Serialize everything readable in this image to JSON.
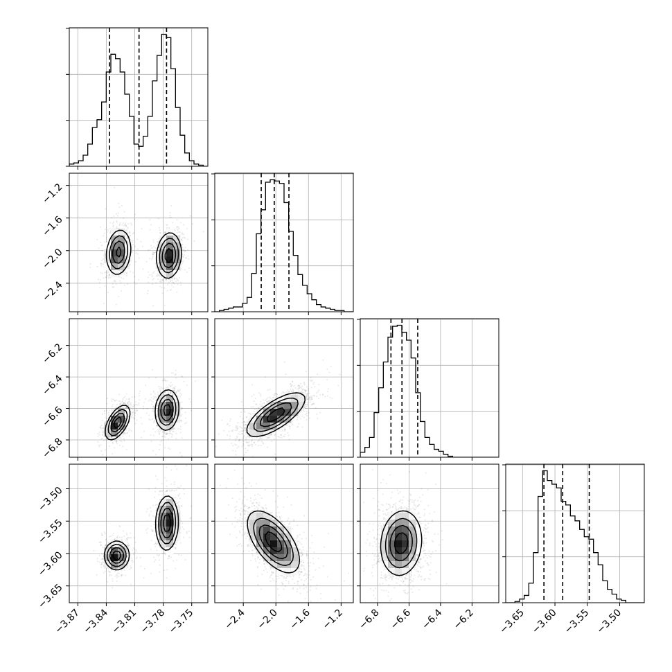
{
  "chart_data": {
    "type": "corner",
    "parameters": 4,
    "grid": true,
    "axis_labels": [
      "",
      "",
      "",
      ""
    ],
    "ranges": [
      [
        -3.879,
        -3.733
      ],
      [
        -2.75,
        -1.05
      ],
      [
        -6.91,
        -6.03
      ],
      [
        -3.676,
        -3.462
      ]
    ],
    "tick_values": [
      [
        -3.87,
        -3.84,
        -3.81,
        -3.78,
        -3.75
      ],
      [
        -2.4,
        -2.0,
        -1.6,
        -1.2
      ],
      [
        -6.8,
        -6.6,
        -6.4,
        -6.2
      ],
      [
        -3.65,
        -3.6,
        -3.55,
        -3.5
      ]
    ],
    "tick_labels": [
      [
        "−3.87",
        "−3.84",
        "−3.81",
        "−3.78",
        "−3.75"
      ],
      [
        "−2.4",
        "−2.0",
        "−1.6",
        "−1.2"
      ],
      [
        "−6.8",
        "−6.6",
        "−6.4",
        "−6.2"
      ],
      [
        "−3.65",
        "−3.60",
        "−3.55",
        "−3.50"
      ]
    ],
    "quantiles": [
      [
        -3.8365,
        -3.8055,
        -3.7765
      ],
      [
        -2.18,
        -2.02,
        -1.84
      ],
      [
        -6.715,
        -6.645,
        -6.545
      ],
      [
        -3.617,
        -3.588,
        -3.547
      ]
    ],
    "histograms": [
      {
        "bins": [
          -3.879,
          -3.733
        ],
        "counts": [
          2,
          3,
          5,
          10,
          20,
          35,
          42,
          58,
          85,
          101,
          97,
          85,
          65,
          45,
          20,
          18,
          27,
          45,
          77,
          100,
          119,
          116,
          88,
          53,
          28,
          12,
          5,
          2,
          1,
          0
        ]
      },
      {
        "bins": [
          -2.75,
          -1.05
        ],
        "counts": [
          0,
          1,
          2,
          3,
          4,
          4,
          7,
          12,
          32,
          65,
          85,
          108,
          110,
          109,
          107,
          91,
          67,
          47,
          31,
          22,
          15,
          10,
          6,
          4,
          3,
          2,
          1,
          1,
          0,
          0
        ]
      },
      {
        "bins": [
          -6.91,
          -6.03
        ],
        "counts": [
          5,
          10,
          20,
          45,
          70,
          96,
          121,
          132,
          133,
          126,
          118,
          100,
          65,
          36,
          20,
          13,
          8,
          6,
          3,
          1,
          0,
          0,
          0,
          0,
          0,
          0,
          0,
          0,
          0,
          0
        ]
      },
      {
        "bins": [
          -3.676,
          -3.462
        ],
        "counts": [
          0,
          0,
          1,
          3,
          6,
          16,
          41,
          87,
          108,
          100,
          97,
          94,
          83,
          80,
          71,
          67,
          60,
          54,
          52,
          41,
          31,
          18,
          11,
          7,
          3,
          2,
          0,
          0,
          0,
          0
        ]
      }
    ],
    "modes_2d": [
      {
        "pair": [
          0,
          1
        ],
        "modes": [
          {
            "center": [
              -3.827,
              -2.02
            ],
            "sigma": [
              0.0065,
              0.14
            ],
            "rho": 0.15,
            "weight": 1.0
          },
          {
            "center": [
              -3.774,
              -2.06
            ],
            "sigma": [
              0.0065,
              0.14
            ],
            "rho": 0.1,
            "weight": 1.1
          }
        ]
      },
      {
        "pair": [
          0,
          2
        ],
        "modes": [
          {
            "center": [
              -3.828,
              -6.69
            ],
            "sigma": [
              0.0065,
              0.055
            ],
            "rho": 0.55,
            "weight": 1.05
          },
          {
            "center": [
              -3.776,
              -6.61
            ],
            "sigma": [
              0.0062,
              0.065
            ],
            "rho": 0.1,
            "weight": 1.0
          }
        ]
      },
      {
        "pair": [
          0,
          3
        ],
        "modes": [
          {
            "center": [
              -3.829,
              -3.603
            ],
            "sigma": [
              0.0065,
              0.011
            ],
            "rho": 0.0,
            "weight": 1.0
          },
          {
            "center": [
              -3.776,
              -3.553
            ],
            "sigma": [
              0.0058,
              0.021
            ],
            "rho": 0.05,
            "weight": 1.0
          }
        ]
      },
      {
        "pair": [
          1,
          2
        ],
        "modes": [
          {
            "center": [
              -2.0,
              -6.64
            ],
            "sigma": [
              0.18,
              0.07
            ],
            "rho": 0.72,
            "weight": 1.0
          }
        ]
      },
      {
        "pair": [
          1,
          3
        ],
        "modes": [
          {
            "center": [
              -2.03,
              -3.582
            ],
            "sigma": [
              0.16,
              0.024
            ],
            "rho": -0.6,
            "weight": 1.0
          }
        ]
      },
      {
        "pair": [
          2,
          3
        ],
        "modes": [
          {
            "center": [
              -6.65,
              -3.584
            ],
            "sigma": [
              0.065,
              0.025
            ],
            "rho": 0.1,
            "weight": 1.0
          }
        ]
      }
    ]
  }
}
